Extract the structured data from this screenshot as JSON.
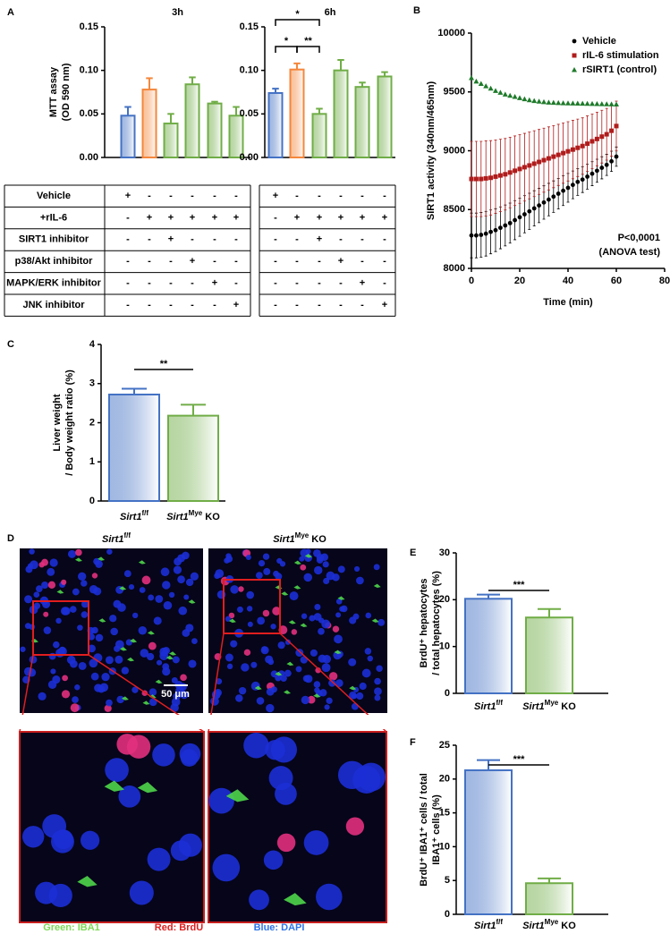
{
  "panel_labels": [
    "A",
    "B",
    "C",
    "D",
    "E",
    "F"
  ],
  "panel_a_table": {
    "rows": [
      "Vehicle",
      "+rIL-6",
      "SIRT1 inhibitor",
      "p38/Akt inhibitor",
      "MAPK/ERK inhibitor",
      "JNK inhibitor"
    ]
  },
  "chart_data": [
    {
      "type": "bar",
      "title": "3h",
      "ylabel": [
        "MTT assay",
        "(OD 590 nm)"
      ],
      "categories": [
        null,
        null,
        null,
        null,
        null,
        null
      ],
      "values": [
        0.048,
        0.078,
        0.039,
        0.084,
        0.062,
        0.048
      ],
      "errors": [
        0.01,
        0.013,
        0.011,
        0.008,
        0.002,
        0.01
      ],
      "colors": [
        "#4472c4",
        "#f4873c",
        "#70ad47",
        "#70ad47",
        "#70ad47",
        "#70ad47"
      ],
      "ylim": [
        0,
        0.15
      ],
      "yticks": [
        {
          "value": 0,
          "label": "0.00"
        },
        0.05,
        {
          "value": 0.1,
          "label": "0.10"
        },
        0.15
      ],
      "treatments": [
        [
          "+",
          "-",
          "-",
          "-",
          "-",
          "-"
        ],
        [
          "-",
          "+",
          "+",
          "+",
          "+",
          "+"
        ],
        [
          "-",
          "-",
          "+",
          "-",
          "-",
          "-"
        ],
        [
          "-",
          "-",
          "-",
          "+",
          "-",
          "-"
        ],
        [
          "-",
          "-",
          "-",
          "-",
          "+",
          "-"
        ],
        [
          "-",
          "-",
          "-",
          "-",
          "-",
          "+"
        ]
      ]
    },
    {
      "type": "bar",
      "title": "6h",
      "categories": [
        null,
        null,
        null,
        null,
        null,
        null
      ],
      "values": [
        0.074,
        0.101,
        0.05,
        0.1,
        0.081,
        0.093
      ],
      "errors": [
        0.005,
        0.007,
        0.006,
        0.012,
        0.005,
        0.005
      ],
      "colors": [
        "#4472c4",
        "#f4873c",
        "#70ad47",
        "#70ad47",
        "#70ad47",
        "#70ad47"
      ],
      "ylim": [
        0,
        0.15
      ],
      "yticks": [
        {
          "value": 0,
          "label": "0.00"
        },
        0.05,
        {
          "value": 0.1,
          "label": "0.10"
        },
        0.15
      ],
      "annotations": [
        "*",
        "*",
        "**"
      ],
      "treatments": [
        [
          "+",
          "-",
          "-",
          "-",
          "-",
          "-"
        ],
        [
          "-",
          "+",
          "+",
          "+",
          "+",
          "+"
        ],
        [
          "-",
          "-",
          "+",
          "-",
          "-",
          "-"
        ],
        [
          "-",
          "-",
          "-",
          "+",
          "-",
          "-"
        ],
        [
          "-",
          "-",
          "-",
          "-",
          "+",
          "-"
        ],
        [
          "-",
          "-",
          "-",
          "-",
          "-",
          "+"
        ]
      ]
    },
    {
      "type": "scatter",
      "xlabel": "Time (min)",
      "ylabel": "SIRT1 activity (340nm/465nm)",
      "x": [
        0,
        2,
        4,
        6,
        8,
        10,
        12,
        14,
        16,
        18,
        20,
        22,
        24,
        26,
        28,
        30,
        32,
        34,
        36,
        38,
        40,
        42,
        44,
        46,
        48,
        50,
        52,
        54,
        56,
        58,
        60
      ],
      "series": [
        {
          "name": "Vehicle",
          "color": "#000000",
          "marker": "circle",
          "values": [
            8280,
            8280,
            8285,
            8295,
            8310,
            8325,
            8345,
            8365,
            8385,
            8410,
            8435,
            8460,
            8485,
            8510,
            8535,
            8560,
            8585,
            8610,
            8635,
            8660,
            8685,
            8710,
            8735,
            8755,
            8780,
            8805,
            8830,
            8855,
            8880,
            8910,
            8950
          ],
          "errors": [
            190,
            190,
            190,
            190,
            186,
            182,
            178,
            174,
            170,
            166,
            162,
            158,
            154,
            150,
            146,
            142,
            138,
            134,
            130,
            126,
            122,
            118,
            114,
            110,
            106,
            102,
            98,
            94,
            90,
            86,
            82
          ]
        },
        {
          "name": "rIL-6 stimulation",
          "color": "#b01c1c",
          "marker": "square",
          "values": [
            8760,
            8760,
            8760,
            8765,
            8770,
            8780,
            8790,
            8800,
            8815,
            8830,
            8845,
            8860,
            8875,
            8890,
            8905,
            8920,
            8935,
            8950,
            8965,
            8980,
            8995,
            9010,
            9025,
            9040,
            9060,
            9080,
            9100,
            9120,
            9140,
            9170,
            9210
          ],
          "errors": [
            320,
            320,
            320,
            320,
            316,
            312,
            308,
            304,
            300,
            296,
            292,
            288,
            284,
            280,
            276,
            272,
            268,
            264,
            260,
            256,
            252,
            248,
            244,
            240,
            236,
            232,
            228,
            224,
            220,
            216,
            212
          ]
        },
        {
          "name": "rSIRT1 (control)",
          "color": "#1e7a2a",
          "marker": "triangle",
          "values": [
            9620,
            9590,
            9570,
            9550,
            9530,
            9510,
            9495,
            9480,
            9470,
            9460,
            9450,
            9440,
            9432,
            9425,
            9420,
            9415,
            9412,
            9410,
            9408,
            9406,
            9405,
            9404,
            9403,
            9402,
            9401,
            9400,
            9399,
            9398,
            9397,
            9396,
            9395
          ]
        }
      ],
      "xlim": [
        0,
        80
      ],
      "xticks": [
        0,
        20,
        40,
        60,
        80
      ],
      "ylim": [
        8000,
        10000
      ],
      "yticks": [
        8000,
        8500,
        9000,
        9500,
        10000
      ],
      "legend": "top-right",
      "annotations": [
        "P<0,0001",
        "(ANOVA test)"
      ]
    },
    {
      "type": "bar",
      "ylabel": [
        "Liver weight",
        "/ Body weight ratio (%)"
      ],
      "categories": [
        [
          "Sirt1",
          "f/f"
        ],
        [
          "Sirt1",
          "Mye",
          " KO"
        ]
      ],
      "values": [
        2.72,
        2.18
      ],
      "errors": [
        0.15,
        0.28
      ],
      "colors": [
        "#4472c4",
        "#70ad47"
      ],
      "ylim": [
        0,
        4
      ],
      "yticks": [
        0,
        1,
        2,
        3,
        4
      ],
      "annotations": [
        "**"
      ]
    },
    {
      "type": "bar",
      "ylabel": [
        "BrdU⁺ hepatocytes",
        "/ total hepatocytes (%)"
      ],
      "categories": [
        [
          "Sirt1",
          "f/f"
        ],
        [
          "Sirt1",
          "Mye",
          " KO"
        ]
      ],
      "values": [
        20.2,
        16.2
      ],
      "errors": [
        0.9,
        1.8
      ],
      "colors": [
        "#4472c4",
        "#70ad47"
      ],
      "ylim": [
        0,
        30
      ],
      "yticks": [
        0,
        10,
        20,
        30
      ],
      "annotations": [
        "***"
      ]
    },
    {
      "type": "bar",
      "ylabel": [
        "BrdU⁺ IBA1⁺ cells / total",
        "IBA1⁺ cells (%)"
      ],
      "categories": [
        [
          "Sirt1",
          "f/f"
        ],
        [
          "Sirt1",
          "Mye",
          " KO"
        ]
      ],
      "values": [
        21.3,
        4.6
      ],
      "errors": [
        1.5,
        0.7
      ],
      "colors": [
        "#4472c4",
        "#70ad47"
      ],
      "ylim": [
        0,
        25
      ],
      "yticks": [
        0,
        5,
        10,
        15,
        20,
        25
      ],
      "annotations": [
        "***"
      ]
    }
  ],
  "panel_d": {
    "columns": [
      [
        "Sirt1",
        "f/f"
      ],
      [
        "Sirt1",
        "Mye",
        " KO"
      ]
    ],
    "scale_bar": "50 μm",
    "legend": [
      {
        "text": "Green: IBA1",
        "color": "#7ed957"
      },
      {
        "text": "Red: BrdU",
        "color": "#e02020"
      },
      {
        "text": "Blue: DAPI",
        "color": "#2e74e8"
      }
    ]
  }
}
